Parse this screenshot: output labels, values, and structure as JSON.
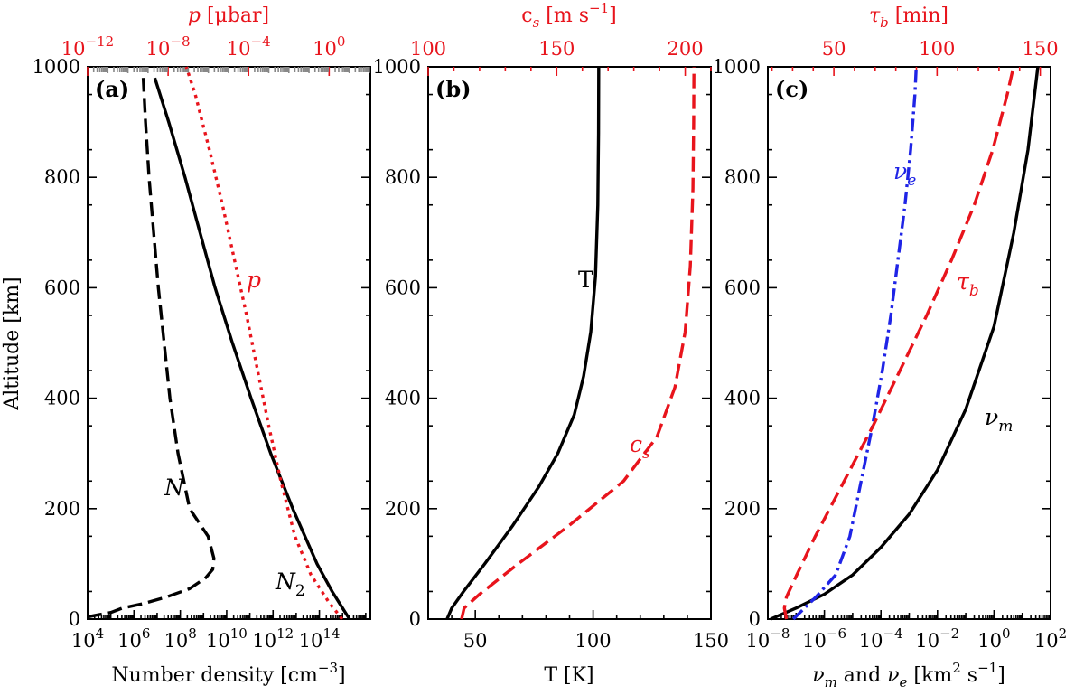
{
  "chart_data": [
    {
      "type": "line",
      "panel_label": "(a)",
      "ylabel": "Altitude [km]",
      "ylim": [
        0,
        1000
      ],
      "yticks": [
        0,
        200,
        400,
        600,
        800,
        1000
      ],
      "xlabel": "Number density [cm^-3]",
      "xlabel_parts": {
        "text": "Number density [cm",
        "sup": "−3",
        "end": "]"
      },
      "xscale": "log",
      "xlim_log10": [
        4,
        16.2
      ],
      "xticks_log10": [
        4,
        6,
        8,
        10,
        12,
        14
      ],
      "top_axis": {
        "label_parts": {
          "italic": "p",
          "rest": " [μbar]"
        },
        "xscale": "log",
        "xlim_log10": [
          -12,
          2.05
        ],
        "ticks_log10": [
          -12,
          -8,
          -4,
          0
        ],
        "color": "#e8141c"
      },
      "series": [
        {
          "name": "N",
          "axis": "bottom",
          "style": "dashed",
          "color": "#000000",
          "points": [
            [
              4.0,
              4
            ],
            [
              4.5,
              8
            ],
            [
              5.0,
              12
            ],
            [
              5.5,
              20
            ],
            [
              6.4,
              28
            ],
            [
              7.4,
              40
            ],
            [
              8.4,
              55
            ],
            [
              9.1,
              75
            ],
            [
              9.4,
              90
            ],
            [
              9.45,
              110
            ],
            [
              9.2,
              150
            ],
            [
              8.4,
              200
            ],
            [
              7.9,
              300
            ],
            [
              7.55,
              400
            ],
            [
              7.3,
              500
            ],
            [
              7.05,
              600
            ],
            [
              6.85,
              700
            ],
            [
              6.65,
              800
            ],
            [
              6.5,
              900
            ],
            [
              6.4,
              980
            ]
          ]
        },
        {
          "name": "N_2",
          "axis": "bottom",
          "style": "solid",
          "color": "#000000",
          "points": [
            [
              15.3,
              0
            ],
            [
              15.0,
              20
            ],
            [
              14.55,
              50
            ],
            [
              13.9,
              100
            ],
            [
              12.85,
              200
            ],
            [
              11.9,
              300
            ],
            [
              11.05,
              400
            ],
            [
              10.25,
              500
            ],
            [
              9.5,
              600
            ],
            [
              8.85,
              700
            ],
            [
              8.2,
              800
            ],
            [
              7.5,
              900
            ],
            [
              6.9,
              980
            ]
          ]
        },
        {
          "name": "p",
          "axis": "top",
          "style": "dotted",
          "color": "#e8141c",
          "points": [
            [
              0.65,
              0
            ],
            [
              0.0,
              30
            ],
            [
              -0.9,
              80
            ],
            [
              -1.7,
              150
            ],
            [
              -2.4,
              250
            ],
            [
              -3.0,
              350
            ],
            [
              -3.55,
              450
            ],
            [
              -4.1,
              550
            ],
            [
              -4.7,
              650
            ],
            [
              -5.3,
              750
            ],
            [
              -5.95,
              850
            ],
            [
              -6.65,
              950
            ],
            [
              -7.1,
              1000
            ]
          ]
        }
      ],
      "annotations": [
        {
          "text": "N",
          "color": "#000000"
        },
        {
          "text": "N",
          "sub": "2",
          "color": "#000000"
        },
        {
          "text": "p",
          "color": "#e8141c"
        }
      ]
    },
    {
      "type": "line",
      "panel_label": "(b)",
      "ylim": [
        0,
        1000
      ],
      "yticks": [
        0,
        200,
        400,
        600,
        800,
        1000
      ],
      "xlabel": "T [K]",
      "xscale": "linear",
      "xlim": [
        30,
        150
      ],
      "xticks": [
        50,
        100,
        150
      ],
      "top_axis": {
        "label_parts": {
          "plain": "c",
          "sub": "s",
          "rest": " [m s",
          "sup": "−1",
          "end": "]"
        },
        "xscale": "linear",
        "xlim": [
          100,
          210
        ],
        "ticks": [
          100,
          150,
          200
        ],
        "color": "#e8141c"
      },
      "series": [
        {
          "name": "T",
          "axis": "bottom",
          "style": "solid",
          "color": "#000000",
          "points": [
            [
              38,
              0
            ],
            [
              40,
              20
            ],
            [
              45,
              50
            ],
            [
              54,
              100
            ],
            [
              66,
              170
            ],
            [
              77,
              240
            ],
            [
              85,
              300
            ],
            [
              92,
              370
            ],
            [
              96,
              440
            ],
            [
              99,
              520
            ],
            [
              101,
              620
            ],
            [
              102,
              750
            ],
            [
              102.3,
              880
            ],
            [
              102.4,
              1000
            ]
          ]
        },
        {
          "name": "c_s",
          "axis": "top",
          "style": "dashed",
          "color": "#e8141c",
          "points": [
            [
              113,
              0
            ],
            [
              114,
              20
            ],
            [
              120,
              45
            ],
            [
              135,
              100
            ],
            [
              155,
              170
            ],
            [
              176,
              250
            ],
            [
              189,
              330
            ],
            [
              196,
              420
            ],
            [
              200,
              520
            ],
            [
              202,
              640
            ],
            [
              203,
              780
            ],
            [
              203.3,
              900
            ],
            [
              203.4,
              1000
            ]
          ]
        }
      ],
      "annotations": [
        {
          "text": "T",
          "color": "#000000"
        },
        {
          "text": "c",
          "sub": "s",
          "color": "#e8141c"
        }
      ]
    },
    {
      "type": "line",
      "panel_label": "(c)",
      "ylim": [
        0,
        1000
      ],
      "yticks": [
        0,
        200,
        400,
        600,
        800,
        1000
      ],
      "xlabel": "ν_m and ν_e [km^2 s^-1]",
      "xlabel_parts": {
        "text": "and",
        "sup2": "2",
        "sup1": "−1"
      },
      "xscale": "log",
      "xlim_log10": [
        -8,
        2
      ],
      "xticks_log10": [
        -8,
        -6,
        -4,
        -2,
        0,
        2
      ],
      "top_axis": {
        "label_parts": {
          "plain": "τ",
          "sub": "b",
          "rest": " [min]"
        },
        "xscale": "linear",
        "xlim": [
          18,
          155
        ],
        "ticks": [
          50,
          100,
          150
        ],
        "color": "#e8141c"
      },
      "series": [
        {
          "name": "ν_m",
          "axis": "bottom",
          "style": "solid",
          "color": "#000000",
          "points": [
            [
              -7.9,
              0
            ],
            [
              -7.0,
              20
            ],
            [
              -6.0,
              45
            ],
            [
              -5.0,
              80
            ],
            [
              -4.0,
              130
            ],
            [
              -3.0,
              190
            ],
            [
              -2.0,
              270
            ],
            [
              -1.0,
              380
            ],
            [
              0.0,
              530
            ],
            [
              0.7,
              700
            ],
            [
              1.2,
              850
            ],
            [
              1.55,
              1000
            ]
          ]
        },
        {
          "name": "ν_e",
          "axis": "bottom",
          "style": "dashdot",
          "color": "#1f24e6",
          "points": [
            [
              -7.1,
              0
            ],
            [
              -6.8,
              15
            ],
            [
              -6.3,
              40
            ],
            [
              -5.6,
              80
            ],
            [
              -5.1,
              150
            ],
            [
              -4.7,
              250
            ],
            [
              -4.3,
              350
            ],
            [
              -3.95,
              450
            ],
            [
              -3.65,
              550
            ],
            [
              -3.4,
              650
            ],
            [
              -3.15,
              750
            ],
            [
              -2.95,
              850
            ],
            [
              -2.8,
              950
            ],
            [
              -2.75,
              1000
            ]
          ]
        },
        {
          "name": "τ_b",
          "axis": "top",
          "style": "dashed",
          "color": "#e8141c",
          "points": [
            [
              27,
              0
            ],
            [
              26,
              20
            ],
            [
              27,
              40
            ],
            [
              32,
              80
            ],
            [
              41,
              150
            ],
            [
              55,
              250
            ],
            [
              69,
              350
            ],
            [
              82,
              450
            ],
            [
              95,
              550
            ],
            [
              107,
              650
            ],
            [
              118,
              750
            ],
            [
              127,
              850
            ],
            [
              134,
              950
            ],
            [
              137,
              1000
            ]
          ]
        }
      ],
      "annotations": [
        {
          "text": "ν",
          "sub": "e",
          "color": "#1f24e6"
        },
        {
          "text": "τ",
          "sub": "b",
          "color": "#e8141c"
        },
        {
          "text": "ν",
          "sub": "m",
          "color": "#000000"
        }
      ]
    }
  ]
}
